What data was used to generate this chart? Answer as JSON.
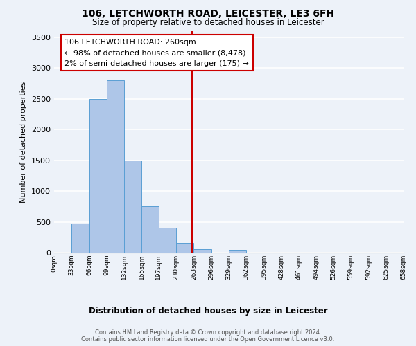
{
  "title": "106, LETCHWORTH ROAD, LEICESTER, LE3 6FH",
  "subtitle": "Size of property relative to detached houses in Leicester",
  "xlabel": "Distribution of detached houses by size in Leicester",
  "ylabel": "Number of detached properties",
  "bar_color": "#aec6e8",
  "bar_edge_color": "#5a9fd4",
  "vline_color": "#cc0000",
  "vline_x": 260,
  "annotation_title": "106 LETCHWORTH ROAD: 260sqm",
  "annotation_line1": "← 98% of detached houses are smaller (8,478)",
  "annotation_line2": "2% of semi-detached houses are larger (175) →",
  "annotation_box_color": "#ffffff",
  "annotation_box_edge": "#cc0000",
  "bin_edges": [
    0,
    33,
    66,
    99,
    132,
    165,
    197,
    230,
    263,
    296,
    329,
    362,
    395,
    428,
    461,
    494,
    526,
    559,
    592,
    625,
    658
  ],
  "bin_values": [
    0,
    475,
    2500,
    2800,
    1500,
    750,
    400,
    155,
    60,
    0,
    50,
    0,
    0,
    0,
    0,
    0,
    0,
    0,
    0,
    0
  ],
  "ylim": [
    0,
    3600
  ],
  "xlim": [
    0,
    658
  ],
  "tick_labels": [
    "0sqm",
    "33sqm",
    "66sqm",
    "99sqm",
    "132sqm",
    "165sqm",
    "197sqm",
    "230sqm",
    "263sqm",
    "296sqm",
    "329sqm",
    "362sqm",
    "395sqm",
    "428sqm",
    "461sqm",
    "494sqm",
    "526sqm",
    "559sqm",
    "592sqm",
    "625sqm",
    "658sqm"
  ],
  "tick_positions": [
    0,
    33,
    66,
    99,
    132,
    165,
    197,
    230,
    263,
    296,
    329,
    362,
    395,
    428,
    461,
    494,
    526,
    559,
    592,
    625,
    658
  ],
  "footer_line1": "Contains HM Land Registry data © Crown copyright and database right 2024.",
  "footer_line2": "Contains public sector information licensed under the Open Government Licence v3.0.",
  "bg_color": "#edf2f9",
  "grid_color": "#ffffff",
  "yticks": [
    0,
    500,
    1000,
    1500,
    2000,
    2500,
    3000,
    3500
  ]
}
